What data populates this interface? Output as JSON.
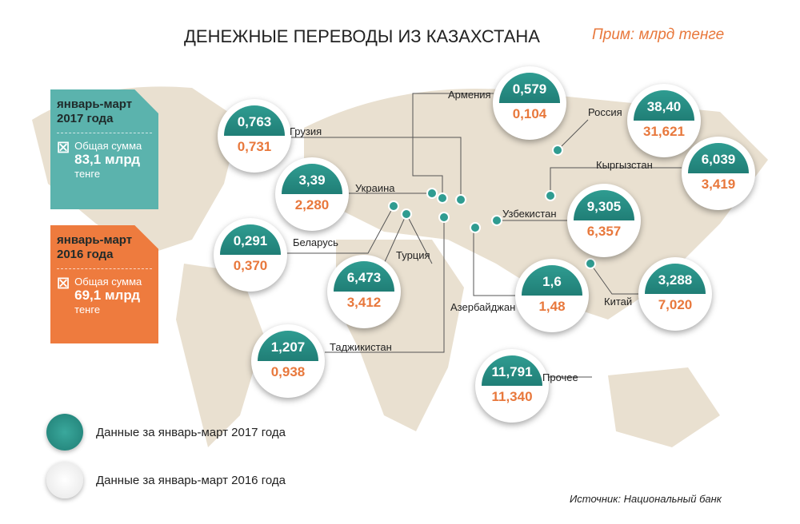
{
  "title": "ДЕНЕЖНЫЕ ПЕРЕВОДЫ ИЗ КАЗАХСТАНА",
  "note": "Прим: млрд тенге",
  "cards": [
    {
      "period": "январь-март 2017 года",
      "label": "Общая сумма",
      "sum": "83,1 млрд",
      "unit": "тенге",
      "color": "#5bb3ad"
    },
    {
      "period": "январь-март 2016 года",
      "label": "Общая сумма",
      "sum": "69,1 млрд",
      "unit": "тенге",
      "color": "#ee7b3e"
    }
  ],
  "countries": [
    {
      "name": "Грузия",
      "v2017": "0,763",
      "v2016": "0,731"
    },
    {
      "name": "Армения",
      "v2017": "0,579",
      "v2016": "0,104"
    },
    {
      "name": "Россия",
      "v2017": "38,40",
      "v2016": "31,621"
    },
    {
      "name": "Кыргызстан",
      "v2017": "6,039",
      "v2016": "3,419"
    },
    {
      "name": "Украина",
      "v2017": "3,39",
      "v2016": "2,280"
    },
    {
      "name": "Узбекистан",
      "v2017": "9,305",
      "v2016": "6,357"
    },
    {
      "name": "Беларусь",
      "v2017": "0,291",
      "v2016": "0,370"
    },
    {
      "name": "Турция",
      "v2017": "6,473",
      "v2016": "3,412"
    },
    {
      "name": "Азербайджан",
      "v2017": "1,6",
      "v2016": "1,48"
    },
    {
      "name": "Китай",
      "v2017": "3,288",
      "v2016": "7,020"
    },
    {
      "name": "Таджикистан",
      "v2017": "1,207",
      "v2016": "0,938"
    },
    {
      "name": "Прочее",
      "v2017": "11,791",
      "v2016": "11,340"
    }
  ],
  "legend": [
    "Данные за январь-март 2017 года",
    "Данные за январь-март 2016 года"
  ],
  "source": "Источник: Национальный банк"
}
